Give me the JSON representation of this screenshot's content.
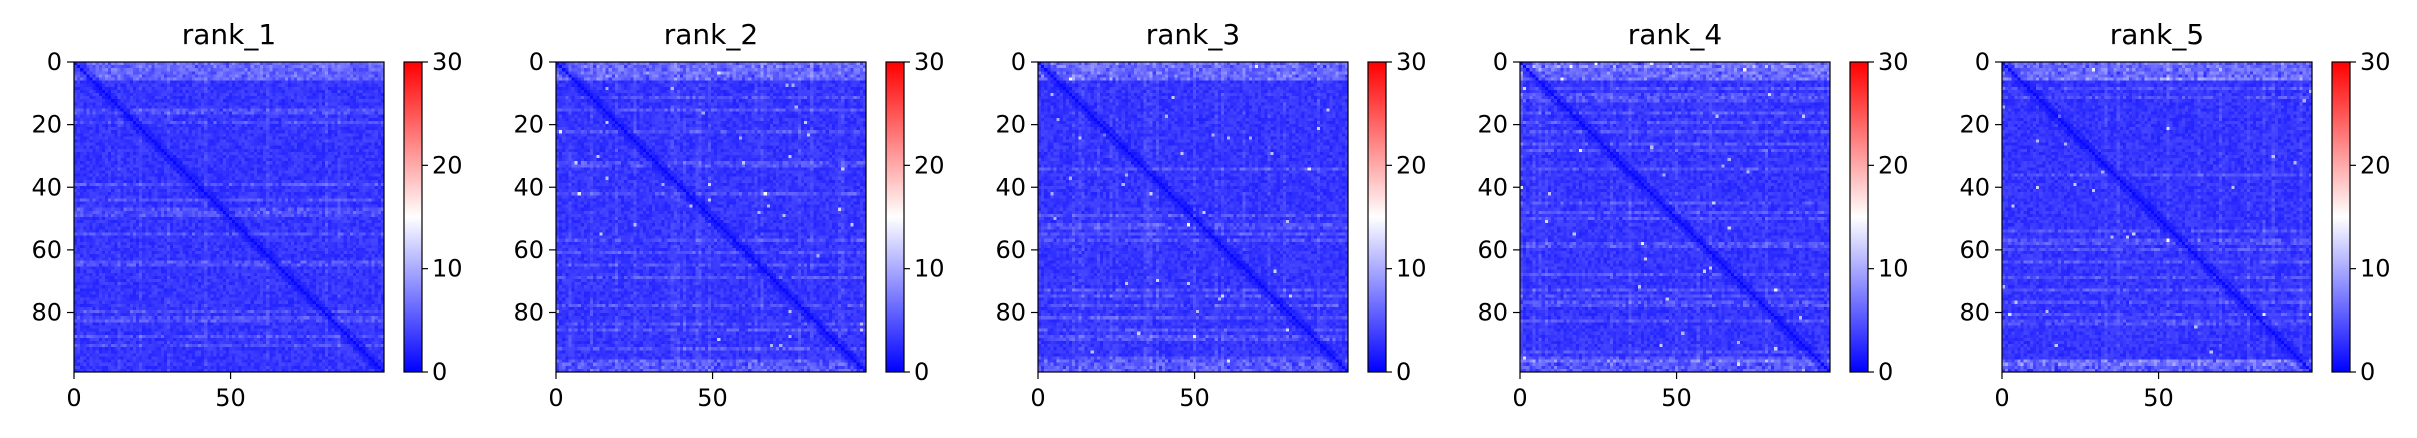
{
  "chart_data": [
    {
      "type": "heatmap",
      "title": "rank_1",
      "x_ticks": [
        0,
        50
      ],
      "y_ticks": [
        0,
        20,
        40,
        60,
        80
      ],
      "xlim": [
        0,
        99
      ],
      "ylim": [
        99,
        0
      ],
      "matrix_size": 100,
      "colorbar": {
        "ticks": [
          0,
          10,
          20,
          30
        ],
        "range": [
          0,
          30
        ],
        "colormap": "bwr"
      },
      "edge_rows_high": false,
      "seed": 11
    },
    {
      "type": "heatmap",
      "title": "rank_2",
      "x_ticks": [
        0,
        50
      ],
      "y_ticks": [
        0,
        20,
        40,
        60,
        80
      ],
      "xlim": [
        0,
        99
      ],
      "ylim": [
        99,
        0
      ],
      "matrix_size": 100,
      "colorbar": {
        "ticks": [
          0,
          10,
          20,
          30
        ],
        "range": [
          0,
          30
        ],
        "colormap": "bwr"
      },
      "edge_rows_high": true,
      "seed": 23
    },
    {
      "type": "heatmap",
      "title": "rank_3",
      "x_ticks": [
        0,
        50
      ],
      "y_ticks": [
        0,
        20,
        40,
        60,
        80
      ],
      "xlim": [
        0,
        99
      ],
      "ylim": [
        99,
        0
      ],
      "matrix_size": 100,
      "colorbar": {
        "ticks": [
          0,
          10,
          20,
          30
        ],
        "range": [
          0,
          30
        ],
        "colormap": "bwr"
      },
      "edge_rows_high": true,
      "seed": 37
    },
    {
      "type": "heatmap",
      "title": "rank_4",
      "x_ticks": [
        0,
        50
      ],
      "y_ticks": [
        0,
        20,
        40,
        60,
        80
      ],
      "xlim": [
        0,
        99
      ],
      "ylim": [
        99,
        0
      ],
      "matrix_size": 100,
      "colorbar": {
        "ticks": [
          0,
          10,
          20,
          30
        ],
        "range": [
          0,
          30
        ],
        "colormap": "bwr"
      },
      "edge_rows_high": true,
      "seed": 41
    },
    {
      "type": "heatmap",
      "title": "rank_5",
      "x_ticks": [
        0,
        50
      ],
      "y_ticks": [
        0,
        20,
        40,
        60,
        80
      ],
      "xlim": [
        0,
        99
      ],
      "ylim": [
        99,
        0
      ],
      "matrix_size": 100,
      "colorbar": {
        "ticks": [
          0,
          10,
          20,
          30
        ],
        "range": [
          0,
          30
        ],
        "colormap": "bwr"
      },
      "edge_rows_high": true,
      "seed": 53
    }
  ]
}
